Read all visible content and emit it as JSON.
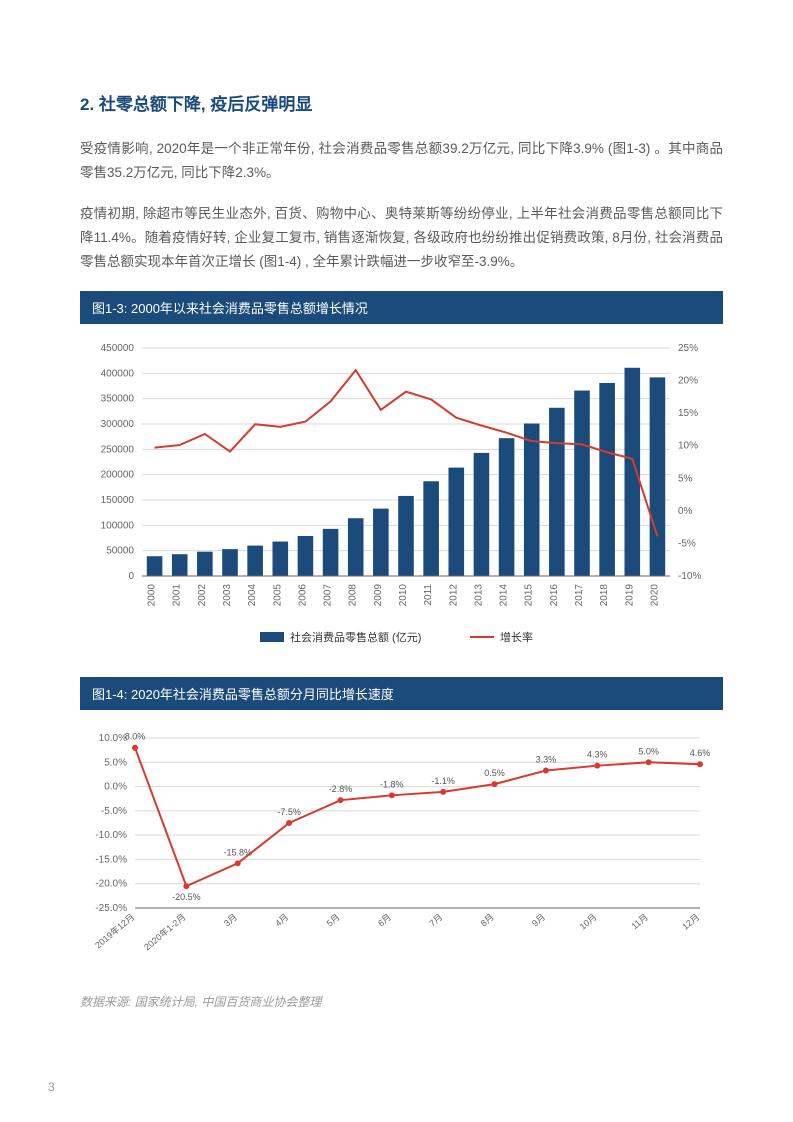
{
  "section_title": "2. 社零总额下降, 疫后反弹明显",
  "para1": "受疫情影响, 2020年是一个非正常年份, 社会消费品零售总额39.2万亿元, 同比下降3.9% (图1-3) 。其中商品零售35.2万亿元, 同比下降2.3%。",
  "para2": "疫情初期, 除超市等民生业态外, 百货、购物中心、奥特莱斯等纷纷停业, 上半年社会消费品零售总额同比下降11.4%。随着疫情好转, 企业复工复市, 销售逐渐恢复, 各级政府也纷纷推出促销费政策, 8月份, 社会消费品零售总额实现本年首次正增长 (图1-4) , 全年累计跌幅进一步收窄至-3.9%。",
  "chart1": {
    "type": "bar_and_line",
    "title": "图1-3: 2000年以来社会消费品零售总额增长情况",
    "years": [
      "2000",
      "2001",
      "2002",
      "2003",
      "2004",
      "2005",
      "2006",
      "2007",
      "2008",
      "2009",
      "2010",
      "2011",
      "2012",
      "2013",
      "2014",
      "2015",
      "2016",
      "2017",
      "2018",
      "2019",
      "2020"
    ],
    "bar_values": [
      39000,
      43000,
      48000,
      53000,
      60000,
      68000,
      79000,
      93000,
      114000,
      133000,
      158000,
      187000,
      214000,
      243000,
      272000,
      301000,
      332000,
      366000,
      381000,
      411000,
      392000
    ],
    "line_values_pct": [
      9.7,
      10.1,
      11.8,
      9.1,
      13.3,
      12.9,
      13.7,
      16.8,
      21.6,
      15.5,
      18.3,
      17.1,
      14.3,
      13.1,
      12.0,
      10.7,
      10.4,
      10.2,
      9.0,
      8.0,
      -3.9
    ],
    "bar_color": "#1a4b7a",
    "line_color": "#d83a2e",
    "y_left_label_ticks": [
      0,
      50000,
      100000,
      150000,
      200000,
      250000,
      300000,
      350000,
      400000,
      450000
    ],
    "y_right_pct_ticks": [
      -10,
      -5,
      0,
      5,
      10,
      15,
      20,
      25
    ],
    "legend_bar": "社会消费品零售总额 (亿元)",
    "legend_line": "增长率",
    "grid_color": "#d9d9d9",
    "axis_text_color": "#666666",
    "axis_font_size": 10,
    "bar_width_ratio": 0.62
  },
  "chart2": {
    "type": "line",
    "title": "图1-4: 2020年社会消费品零售总额分月同比增长速度",
    "x_labels": [
      "2019年12月",
      "2020年1-2月",
      "3月",
      "4月",
      "5月",
      "6月",
      "7月",
      "8月",
      "9月",
      "10月",
      "11月",
      "12月"
    ],
    "values_pct": [
      8.0,
      -20.5,
      -15.8,
      -7.5,
      -2.8,
      -1.8,
      -1.1,
      0.5,
      3.3,
      4.3,
      5.0,
      4.6
    ],
    "line_color": "#d83a2e",
    "y_ticks": [
      -25,
      -20,
      -15,
      -10,
      -5,
      0,
      5,
      10
    ],
    "grid_color": "#d9d9d9",
    "axis_text_color": "#666666",
    "axis_font_size": 10,
    "label_font_size": 9
  },
  "source": "数据来源: 国家统计局, 中国百货商业协会整理",
  "page_number": "3"
}
